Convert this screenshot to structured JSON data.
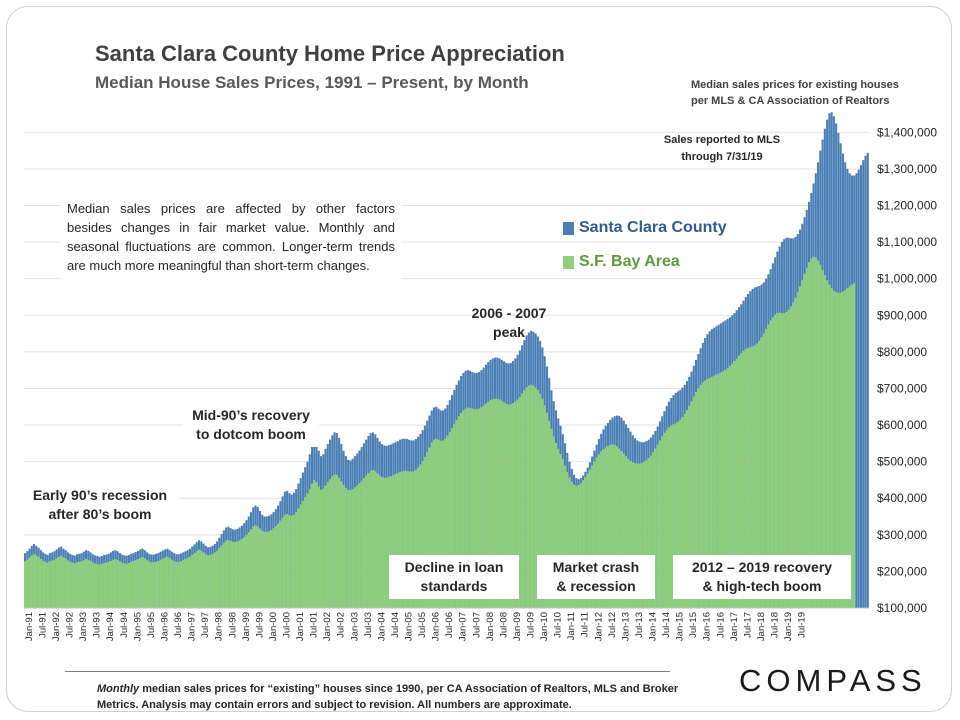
{
  "title": "Santa Clara County Home Price Appreciation",
  "subtitle": "Median House Sales Prices, 1991 – Present, by Month",
  "source_note": [
    "Median sales prices for existing houses",
    "per MLS & CA Association  of Realtors"
  ],
  "reported_note": [
    "Sales reported to MLS",
    "through 7/31/19"
  ],
  "notes_text": "Median sales prices are affected by other factors besides changes in fair market value. Monthly and seasonal fluctuations are common. Longer-term trends are much more meaningful than short-term changes.",
  "legend": [
    {
      "label": "Santa Clara County",
      "color": "#4a7fb5"
    },
    {
      "label": "S.F. Bay Area",
      "color": "#8ed078"
    }
  ],
  "callouts": {
    "early90s": [
      "Early 90’s recession",
      "after 80’s boom"
    ],
    "mid90s": [
      "Mid-90’s recovery",
      "to dotcom boom"
    ],
    "peak": [
      "2006 - 2007",
      "peak"
    ],
    "decline": [
      "Decline in loan",
      "standards"
    ],
    "crash": [
      "Market crash",
      "& recession"
    ],
    "recovery": [
      "2012 – 2019 recovery",
      "& high-tech boom"
    ]
  },
  "footnote": {
    "lead": "Monthly",
    "rest": " median sales prices for “existing” houses since 1990, per CA Association of Realtors, MLS and Broker Metrics.  Analysis  may contain errors and subject to revision.  All numbers are approximate."
  },
  "logo": "COMPASS",
  "chart_data": {
    "type": "bar",
    "title": "Santa Clara County Home Price Appreciation",
    "subtitle": "Median House Sales Prices, 1991 – Present, by Month",
    "ylim": [
      100000,
      1450000
    ],
    "y_ticks": [
      {
        "value": 100000,
        "label": "$100,000"
      },
      {
        "value": 200000,
        "label": "$200,000"
      },
      {
        "value": 300000,
        "label": "$300,000"
      },
      {
        "value": 400000,
        "label": "$400,000"
      },
      {
        "value": 500000,
        "label": "$500,000"
      },
      {
        "value": 600000,
        "label": "$600,000"
      },
      {
        "value": 700000,
        "label": "$700,000"
      },
      {
        "value": 800000,
        "label": "$800,000"
      },
      {
        "value": 900000,
        "label": "$900,000"
      },
      {
        "value": 1000000,
        "label": "$1,000,000"
      },
      {
        "value": 1100000,
        "label": "$1,100,000"
      },
      {
        "value": 1200000,
        "label": "$1,200,000"
      },
      {
        "value": 1300000,
        "label": "$1,300,000"
      },
      {
        "value": 1400000,
        "label": "$1,400,000"
      }
    ],
    "x_labels": [
      "Jan-91",
      "Jul-91",
      "Jan-92",
      "Jul-92",
      "Jan-93",
      "Jul-93",
      "Jan-94",
      "Jul-94",
      "Jan-95",
      "Jul-95",
      "Jan-96",
      "Jul-96",
      "Jan-97",
      "Jul-97",
      "Jan-98",
      "Jul-98",
      "Jan-99",
      "Jul-99",
      "Jan-00",
      "Jul-00",
      "Jan-01",
      "Jul-01",
      "Jan-02",
      "Jul-02",
      "Jan-03",
      "Jul-03",
      "Jan-04",
      "Jul-04",
      "Jan-05",
      "Jul-05",
      "Jan-06",
      "Jul-06",
      "Jan-07",
      "Jul-07",
      "Jan-08",
      "Jul-08",
      "Jan-09",
      "Jul-09",
      "Jan-10",
      "Jul-10",
      "Jan-11",
      "Jul-11",
      "Jan-12",
      "Jul-12",
      "Jan-13",
      "Jul-13",
      "Jan-14",
      "Jul-14",
      "Jan-15",
      "Jul-15",
      "Jan-16",
      "Jul-16",
      "Jan-17",
      "Jul-17",
      "Jan-18",
      "Jul-18",
      "Jan-19",
      "Jul-19"
    ],
    "period": "Jan-91 to Jul-19, monthly",
    "series": [
      {
        "name": "Santa Clara County",
        "color": "#4a7fb5",
        "values": [
          250000,
          255000,
          262000,
          270000,
          275000,
          270000,
          265000,
          258000,
          252000,
          248000,
          245000,
          250000,
          252000,
          255000,
          260000,
          265000,
          268000,
          262000,
          258000,
          252000,
          248000,
          245000,
          243000,
          247000,
          248000,
          250000,
          254000,
          258000,
          256000,
          252000,
          247000,
          244000,
          242000,
          240000,
          242000,
          245000,
          246000,
          248000,
          252000,
          256000,
          258000,
          255000,
          250000,
          246000,
          244000,
          243000,
          245000,
          248000,
          250000,
          253000,
          256000,
          260000,
          262000,
          258000,
          252000,
          248000,
          246000,
          246000,
          248000,
          250000,
          254000,
          257000,
          260000,
          262000,
          258000,
          254000,
          250000,
          247000,
          247000,
          249000,
          252000,
          255000,
          258000,
          262000,
          268000,
          274000,
          280000,
          285000,
          282000,
          276000,
          270000,
          266000,
          267000,
          270000,
          275000,
          282000,
          292000,
          302000,
          312000,
          320000,
          322000,
          318000,
          315000,
          314000,
          316000,
          320000,
          325000,
          332000,
          340000,
          350000,
          362000,
          375000,
          380000,
          376000,
          365000,
          355000,
          350000,
          350000,
          352000,
          356000,
          362000,
          370000,
          380000,
          392000,
          405000,
          418000,
          420000,
          414000,
          410000,
          415000,
          425000,
          440000,
          455000,
          470000,
          485000,
          500000,
          520000,
          545000,
          560000,
          550000,
          530000,
          515000,
          520000,
          535000,
          548000,
          560000,
          572000,
          580000,
          578000,
          565000,
          548000,
          530000,
          515000,
          505000,
          503000,
          508000,
          515000,
          522000,
          530000,
          540000,
          550000,
          560000,
          570000,
          578000,
          580000,
          575000,
          565000,
          555000,
          548000,
          544000,
          543000,
          545000,
          547000,
          550000,
          553000,
          556000,
          560000,
          562000,
          563000,
          562000,
          560000,
          558000,
          558000,
          562000,
          568000,
          576000,
          586000,
          598000,
          612000,
          626000,
          640000,
          648000,
          650000,
          645000,
          640000,
          640000,
          645000,
          655000,
          668000,
          682000,
          696000,
          710000,
          722000,
          734000,
          742000,
          748000,
          750000,
          748000,
          745000,
          742000,
          742000,
          745000,
          750000,
          757000,
          765000,
          772000,
          778000,
          782000,
          784000,
          784000,
          782000,
          778000,
          774000,
          770000,
          768000,
          770000,
          775000,
          782000,
          792000,
          804000,
          818000,
          832000,
          845000,
          853000,
          857000,
          855000,
          850000,
          842000,
          830000,
          812000,
          788000,
          760000,
          728000,
          695000,
          665000,
          640000,
          618000,
          598000,
          575000,
          550000,
          524000,
          500000,
          480000,
          464000,
          455000,
          452000,
          455000,
          462000,
          472000,
          484000,
          498000,
          514000,
          530000,
          546000,
          562000,
          576000,
          588000,
          598000,
          606000,
          614000,
          620000,
          624000,
          626000,
          625000,
          620000,
          612000,
          602000,
          592000,
          582000,
          572000,
          564000,
          558000,
          555000,
          553000,
          553000,
          556000,
          560000,
          566000,
          574000,
          584000,
          596000,
          610000,
          624000,
          638000,
          652000,
          664000,
          674000,
          682000,
          688000,
          692000,
          696000,
          702000,
          710000,
          720000,
          732000,
          746000,
          762000,
          778000,
          794000,
          810000,
          825000,
          838000,
          848000,
          856000,
          862000,
          866000,
          870000,
          874000,
          878000,
          882000,
          886000,
          890000,
          894000,
          900000,
          906000,
          914000,
          922000,
          930000,
          940000,
          950000,
          958000,
          966000,
          972000,
          976000,
          978000,
          980000,
          984000,
          990000,
          1000000,
          1012000,
          1026000,
          1042000,
          1058000,
          1074000,
          1088000,
          1100000,
          1108000,
          1112000,
          1112000,
          1110000,
          1110000,
          1114000,
          1122000,
          1134000,
          1150000,
          1168000,
          1188000,
          1210000,
          1234000,
          1260000,
          1288000,
          1318000,
          1350000,
          1380000,
          1410000,
          1435000,
          1452000,
          1455000,
          1444000,
          1424000,
          1398000,
          1370000,
          1342000,
          1318000,
          1300000,
          1288000,
          1282000,
          1282000,
          1288000,
          1298000,
          1310000,
          1324000,
          1336000,
          1344000
        ]
      },
      {
        "name": "S.F. Bay Area",
        "color": "#8ed078",
        "values": [
          228000,
          232000,
          238000,
          244000,
          248000,
          244000,
          240000,
          234000,
          229000,
          226000,
          224000,
          228000,
          230000,
          232000,
          236000,
          240000,
          243000,
          239000,
          235000,
          230000,
          226000,
          224000,
          222000,
          225000,
          226000,
          228000,
          231000,
          234000,
          232000,
          229000,
          225000,
          222000,
          220000,
          219000,
          220000,
          223000,
          224000,
          226000,
          229000,
          232000,
          234000,
          232000,
          228000,
          224000,
          222000,
          221000,
          223000,
          226000,
          228000,
          231000,
          234000,
          237000,
          239000,
          236000,
          231000,
          227000,
          225000,
          225000,
          226000,
          228000,
          232000,
          235000,
          238000,
          240000,
          236000,
          232000,
          229000,
          226000,
          226000,
          228000,
          231000,
          234000,
          237000,
          240000,
          245000,
          250000,
          255000,
          259000,
          257000,
          252000,
          247000,
          244000,
          245000,
          248000,
          252000,
          257000,
          264000,
          271000,
          278000,
          284000,
          286000,
          283000,
          281000,
          280000,
          282000,
          285000,
          289000,
          294000,
          300000,
          307000,
          315000,
          323000,
          326000,
          323000,
          317000,
          311000,
          308000,
          308000,
          310000,
          313000,
          318000,
          324000,
          331000,
          339000,
          347000,
          355000,
          357000,
          354000,
          352000,
          355000,
          362000,
          372000,
          383000,
          393000,
          403000,
          413000,
          425000,
          440000,
          450000,
          444000,
          432000,
          423000,
          426000,
          435000,
          444000,
          452000,
          460000,
          465000,
          464000,
          456000,
          446000,
          436000,
          428000,
          423000,
          422000,
          425000,
          430000,
          435000,
          441000,
          448000,
          455000,
          462000,
          469000,
          475000,
          477000,
          474000,
          468000,
          462000,
          458000,
          456000,
          456000,
          458000,
          460000,
          463000,
          466000,
          469000,
          472000,
          474000,
          475000,
          475000,
          474000,
          473000,
          474000,
          478000,
          484000,
          492000,
          502000,
          513000,
          526000,
          539000,
          552000,
          560000,
          563000,
          560000,
          557000,
          558000,
          563000,
          571000,
          581000,
          592000,
          603000,
          614000,
          624000,
          633000,
          640000,
          645000,
          648000,
          647000,
          645000,
          643000,
          643000,
          645000,
          649000,
          654000,
          659000,
          664000,
          668000,
          671000,
          672000,
          672000,
          670000,
          666000,
          662000,
          658000,
          656000,
          657000,
          660000,
          664000,
          670000,
          677000,
          686000,
          695000,
          703000,
          708000,
          710000,
          708000,
          703000,
          696000,
          686000,
          672000,
          654000,
          634000,
          612000,
          590000,
          569000,
          551000,
          535000,
          521000,
          506000,
          489000,
          472000,
          457000,
          445000,
          437000,
          434000,
          436000,
          441000,
          449000,
          458000,
          468000,
          479000,
          490000,
          501000,
          511000,
          520000,
          528000,
          534000,
          539000,
          543000,
          546000,
          547000,
          546000,
          542000,
          536000,
          529000,
          522000,
          515000,
          508000,
          502000,
          498000,
          496000,
          495000,
          495000,
          497000,
          500000,
          504000,
          510000,
          517000,
          526000,
          536000,
          547000,
          558000,
          569000,
          579000,
          587000,
          594000,
          599000,
          602000,
          605000,
          609000,
          615000,
          622000,
          631000,
          641000,
          653000,
          665000,
          678000,
          690000,
          701000,
          710000,
          717000,
          722000,
          726000,
          729000,
          732000,
          735000,
          738000,
          741000,
          744000,
          747000,
          751000,
          756000,
          762000,
          768000,
          775000,
          782000,
          790000,
          797000,
          803000,
          808000,
          811000,
          813000,
          815000,
          818000,
          823000,
          830000,
          840000,
          851000,
          863000,
          875000,
          886000,
          895000,
          902000,
          906000,
          907000,
          906000,
          906000,
          909000,
          915000,
          924000,
          935000,
          948000,
          963000,
          979000,
          996000,
          1013000,
          1030000,
          1045000,
          1055000,
          1060000,
          1058000,
          1050000,
          1038000,
          1024000,
          1010000,
          996000,
          984000,
          974000,
          967000,
          963000,
          961000,
          962000,
          965000,
          969000,
          974000,
          979000,
          984000,
          988000
        ]
      }
    ]
  }
}
